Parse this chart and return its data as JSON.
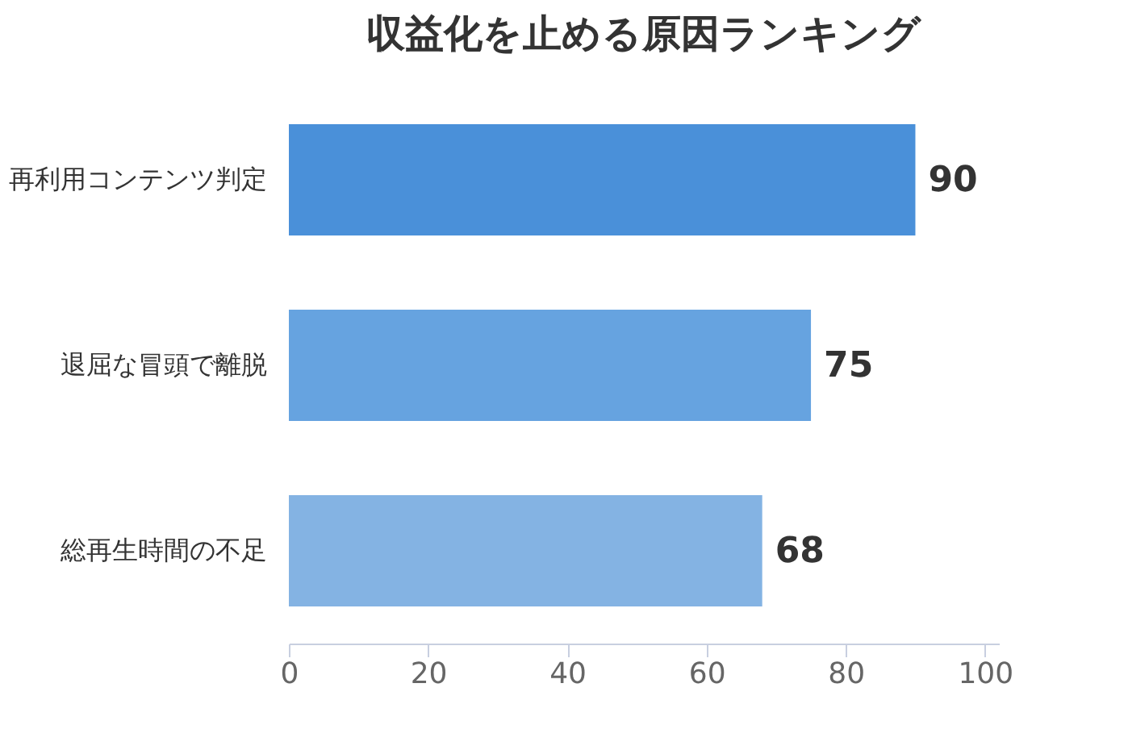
{
  "chart_data": {
    "type": "bar",
    "orientation": "horizontal",
    "title": "収益化を止める原因ランキング",
    "categories": [
      "再利用コンテンツ判定",
      "退屈な冒頭で離脱",
      "総再生時間の不足"
    ],
    "values": [
      90,
      75,
      68
    ],
    "colors": [
      "#4a90d9",
      "#66a3e0",
      "#84b3e3"
    ],
    "xlim": [
      0,
      102
    ],
    "xticks": [
      0,
      20,
      40,
      60,
      80,
      100
    ],
    "data_labels": true,
    "grid": false
  }
}
